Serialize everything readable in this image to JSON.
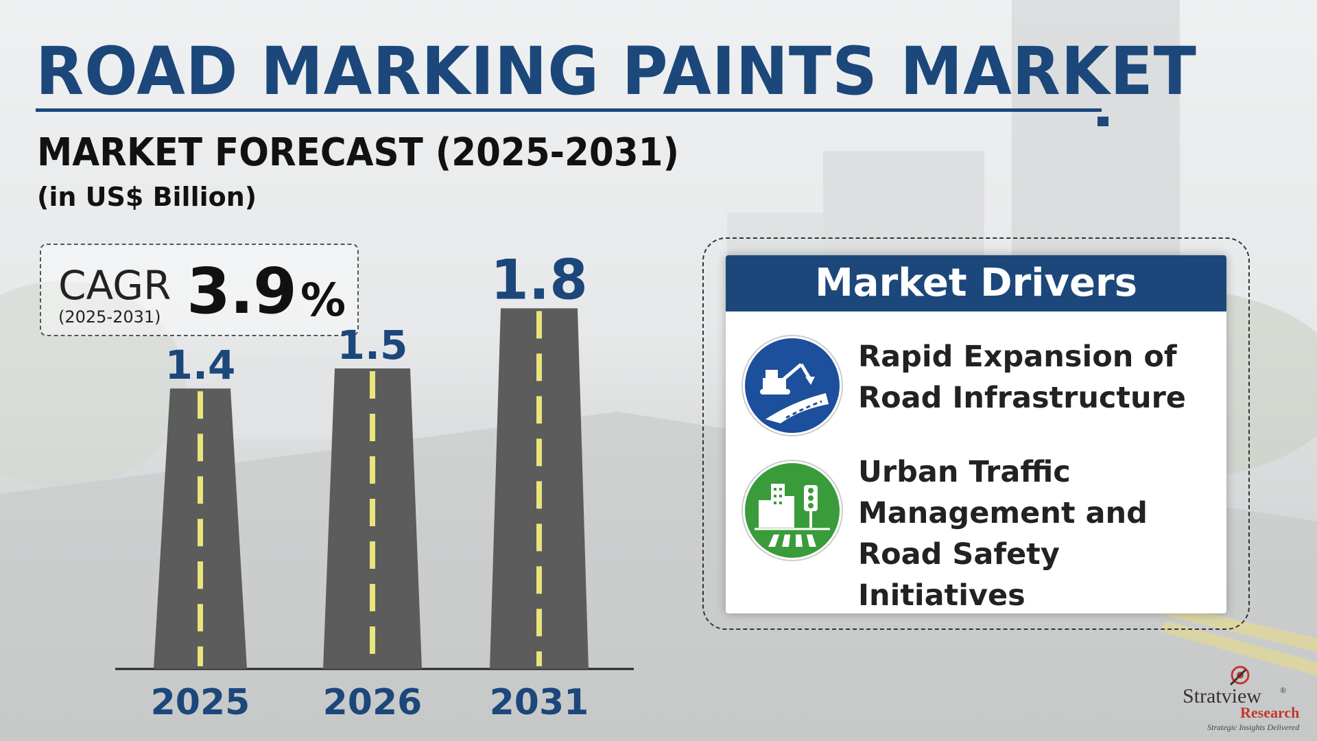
{
  "title": "ROAD MARKING PAINTS MARKET",
  "subtitle": "MARKET FORECAST (2025-2031)",
  "unit": "(in US$ Billion)",
  "cagr": {
    "label": "CAGR",
    "period": "(2025-2031)",
    "value": "3.9",
    "percent_sign": "%"
  },
  "chart_data": {
    "type": "bar",
    "categories": [
      "2025",
      "2026",
      "2031"
    ],
    "values": [
      1.4,
      1.5,
      1.8
    ],
    "value_labels": [
      "1.4",
      "1.5",
      "1.8"
    ],
    "title": "MARKET FORECAST (2025-2031)",
    "ylabel": "",
    "xlabel": "",
    "grid": false,
    "bar_color": "#5c5c5c",
    "lane_marking_color": "#e9e57a",
    "label_color": "#1c477a"
  },
  "drivers": {
    "header": "Market Drivers",
    "items": [
      {
        "text": "Rapid Expansion of\nRoad Infrastructure",
        "icon": "excavator-road-icon",
        "icon_color": "#1c4f9c"
      },
      {
        "text": "Urban Traffic\nManagement and\nRoad Safety Initiatives",
        "icon": "city-traffic-light-icon",
        "icon_color": "#3a9b3a"
      }
    ]
  },
  "logo": {
    "name": "Stratview",
    "registered": "®",
    "sub": "Research",
    "tagline": "Strategic Insights Delivered"
  }
}
